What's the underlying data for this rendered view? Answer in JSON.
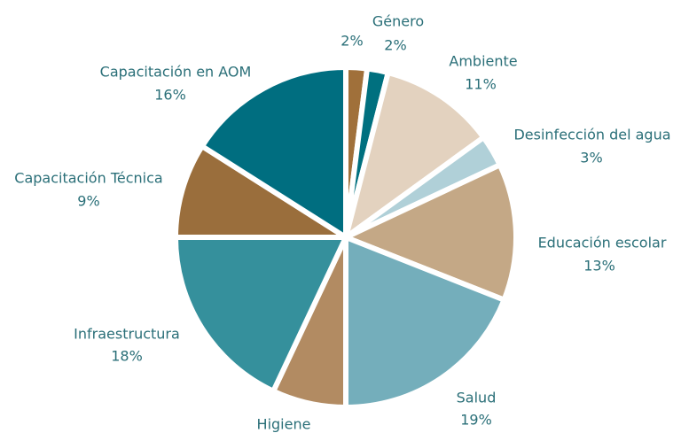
{
  "chart_data": {
    "type": "pie",
    "categories": [
      null,
      "Género",
      "Ambiente",
      "Desinfección del agua",
      "Educación escolar",
      "Salud",
      "Higiene",
      "Infraestructura",
      "Capacitación Técnica",
      "Capacitación en AOM"
    ],
    "values": [
      2,
      2,
      11,
      3,
      13,
      19,
      7,
      18,
      9,
      16
    ],
    "value_labels": [
      "2%",
      "2%",
      "11%",
      "3%",
      "13%",
      "19%",
      null,
      "18%",
      "9%",
      "16%"
    ],
    "colors": [
      "#a0703a",
      "#00707f",
      "#e3d2bf",
      "#b0d0d8",
      "#c4a886",
      "#74aebb",
      "#b28b62",
      "#35909c",
      "#9a6e3c",
      "#006e80"
    ]
  }
}
